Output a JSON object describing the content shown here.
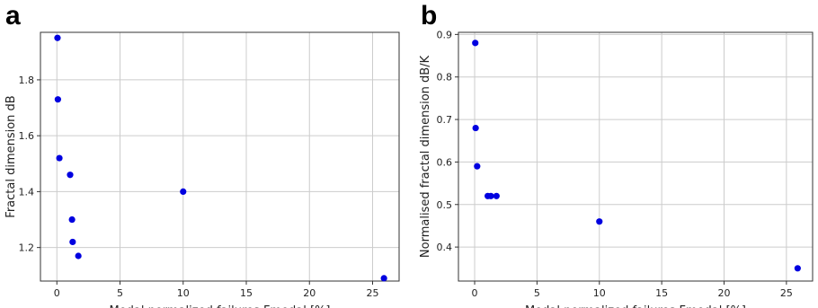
{
  "chart_data": [
    {
      "panel_letter": "a",
      "type": "scatter",
      "xlabel": "Modal normalized failures Fmodal [%]",
      "ylabel": "Fractal dimension dB",
      "xlim": [
        -1.3,
        27.1
      ],
      "ylim": [
        1.08,
        1.97
      ],
      "xticks": [
        0,
        5,
        10,
        15,
        20,
        25
      ],
      "yticks": [
        1.2,
        1.4,
        1.6,
        1.8
      ],
      "ytick_labels": [
        "1.2",
        "1.4",
        "1.6",
        "1.8"
      ],
      "grid": true,
      "color": "#0000e0",
      "points": [
        {
          "x": 0.05,
          "y": 1.95
        },
        {
          "x": 0.08,
          "y": 1.73
        },
        {
          "x": 0.2,
          "y": 1.52
        },
        {
          "x": 1.05,
          "y": 1.46
        },
        {
          "x": 1.2,
          "y": 1.3
        },
        {
          "x": 1.25,
          "y": 1.22
        },
        {
          "x": 1.7,
          "y": 1.17
        },
        {
          "x": 10.0,
          "y": 1.4
        },
        {
          "x": 25.9,
          "y": 1.09
        }
      ]
    },
    {
      "panel_letter": "b",
      "type": "scatter",
      "xlabel": "Modal normalized failures Fmodal [%]",
      "ylabel": "Normalised fractal dimension dB/K",
      "xlim": [
        -1.3,
        27.1
      ],
      "ylim": [
        0.32,
        0.905
      ],
      "xticks": [
        0,
        5,
        10,
        15,
        20,
        25
      ],
      "yticks": [
        0.4,
        0.5,
        0.6,
        0.7,
        0.8,
        0.9
      ],
      "ytick_labels": [
        "0.4",
        "0.5",
        "0.6",
        "0.7",
        "0.8",
        "0.9"
      ],
      "grid": true,
      "color": "#0000e0",
      "points": [
        {
          "x": 0.05,
          "y": 0.88
        },
        {
          "x": 0.08,
          "y": 0.68
        },
        {
          "x": 0.2,
          "y": 0.59
        },
        {
          "x": 1.05,
          "y": 0.52
        },
        {
          "x": 1.3,
          "y": 0.52
        },
        {
          "x": 1.75,
          "y": 0.52
        },
        {
          "x": 10.0,
          "y": 0.46
        },
        {
          "x": 25.9,
          "y": 0.35
        }
      ]
    }
  ]
}
